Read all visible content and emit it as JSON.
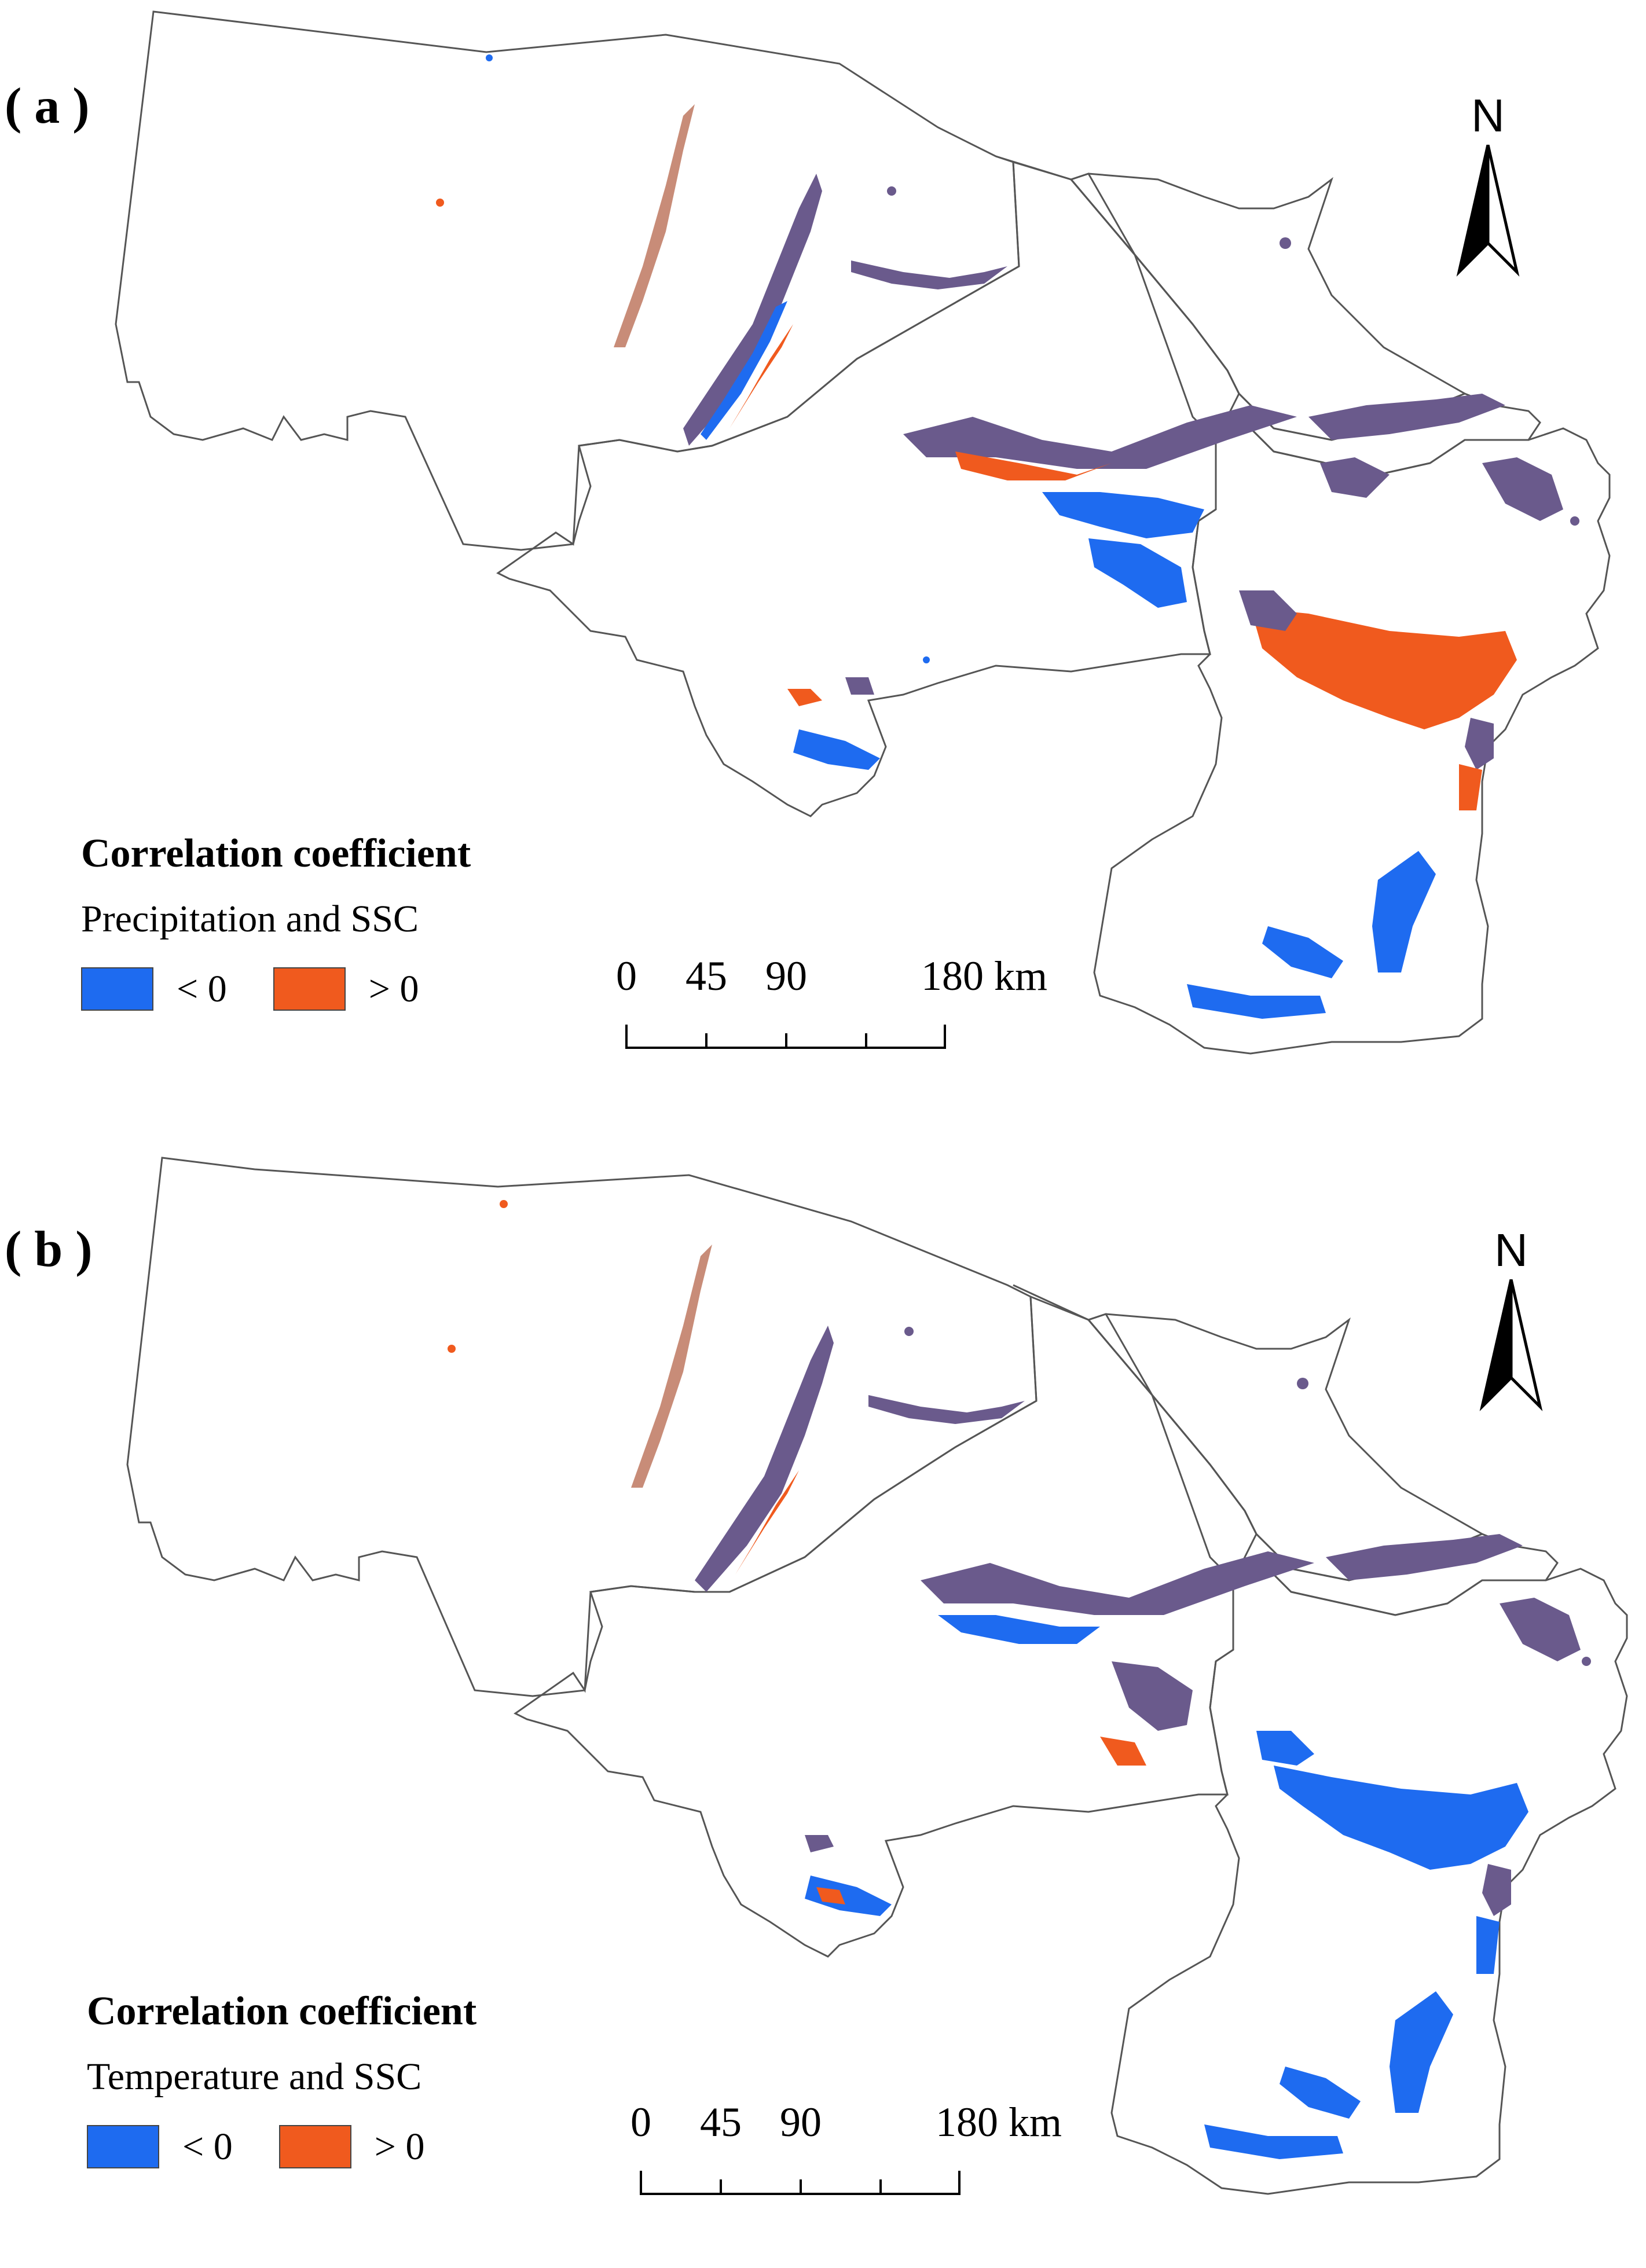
{
  "panels": [
    {
      "id": "a",
      "label": "( a )",
      "legend": {
        "title": "Correlation coefficient",
        "subtitle": "Precipitation and SSC",
        "items": [
          {
            "label": "< 0",
            "color": "#1e6bf0"
          },
          {
            "label": "> 0",
            "color": "#f05a1e"
          }
        ]
      }
    },
    {
      "id": "b",
      "label": "( b )",
      "legend": {
        "title": "Correlation coefficient",
        "subtitle": "Temperature and SSC",
        "items": [
          {
            "label": "< 0",
            "color": "#1e6bf0"
          },
          {
            "label": "> 0",
            "color": "#f05a1e"
          }
        ]
      }
    }
  ],
  "north_arrow": {
    "letter": "N"
  },
  "scale_bar": {
    "ticks": [
      "0",
      "45",
      "90",
      "180 km"
    ]
  },
  "colors": {
    "negative": "#1e6bf0",
    "positive": "#f05a1e",
    "mixed": "#6a5a8c",
    "boundary": "#555555"
  }
}
